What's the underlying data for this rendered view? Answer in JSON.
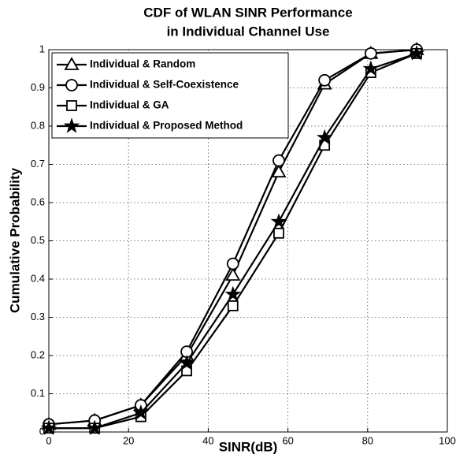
{
  "chart_data": {
    "type": "line",
    "title": [
      "CDF of WLAN SINR Performance",
      "in Individual Channel Use"
    ],
    "xlabel": "SINR(dB)",
    "ylabel": "Cumulative Probability",
    "x": [
      0,
      11.5,
      23.1,
      34.6,
      46.2,
      57.7,
      69.2,
      80.8,
      92.3
    ],
    "series": [
      {
        "name": "Individual & Random",
        "color": "#000000",
        "marker": "triangle",
        "values": [
          0.02,
          0.03,
          0.07,
          0.2,
          0.41,
          0.68,
          0.91,
          0.99,
          1.0
        ]
      },
      {
        "name": "Individual & Self-Coexistence",
        "color": "#000000",
        "marker": "circle",
        "values": [
          0.02,
          0.03,
          0.07,
          0.21,
          0.44,
          0.71,
          0.92,
          0.99,
          1.0
        ]
      },
      {
        "name": "Individual & GA",
        "color": "#000000",
        "marker": "square",
        "values": [
          0.01,
          0.01,
          0.04,
          0.16,
          0.33,
          0.52,
          0.75,
          0.94,
          0.99
        ]
      },
      {
        "name": "Individual & Proposed Method",
        "color": "#000000",
        "marker": "star",
        "values": [
          0.01,
          0.01,
          0.05,
          0.18,
          0.36,
          0.55,
          0.77,
          0.95,
          0.99
        ]
      }
    ],
    "xlim": [
      0,
      100
    ],
    "xticks": [
      0,
      20,
      40,
      60,
      80,
      100
    ],
    "ylim": [
      0,
      1
    ],
    "yticks": [
      0,
      0.1,
      0.2,
      0.3,
      0.4,
      0.5,
      0.6,
      0.7,
      0.8,
      0.9,
      1
    ],
    "grid": true,
    "legend": "upper left"
  }
}
